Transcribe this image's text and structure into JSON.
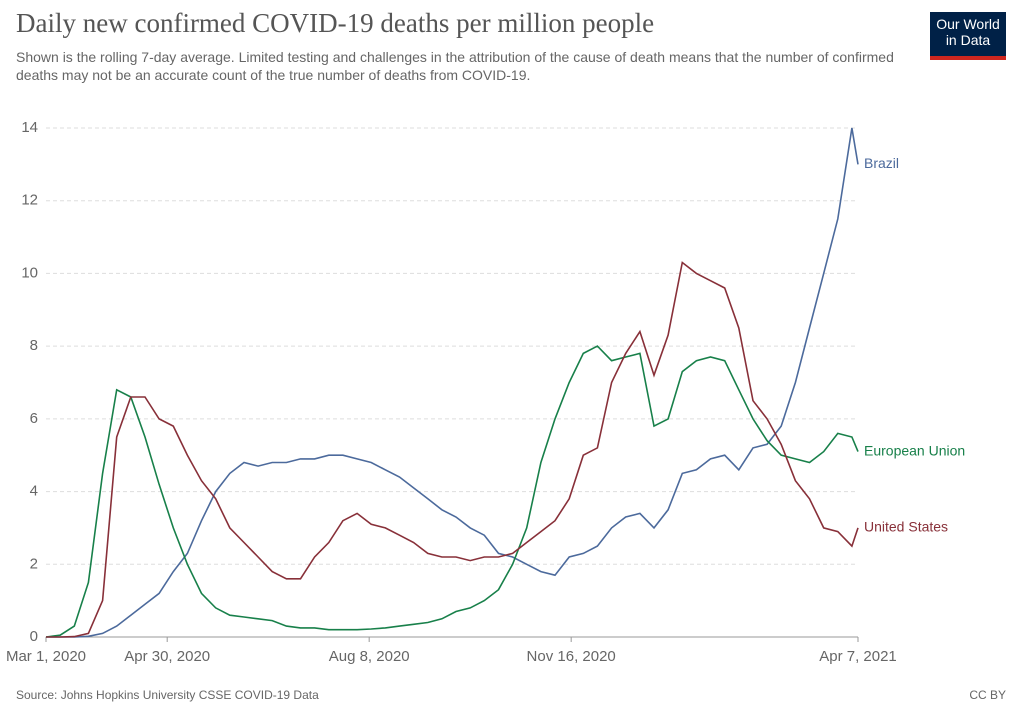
{
  "chart_data": {
    "type": "line",
    "title": "Daily new confirmed COVID-19 deaths per million people",
    "subtitle": "Shown is the rolling 7-day average. Limited testing and challenges in the attribution of the cause of death means that the number of confirmed deaths may not be an accurate count of the true number of deaths from COVID-19.",
    "logo": "Our World in Data",
    "source": "Source: Johns Hopkins University CSSE COVID-19 Data",
    "license": "CC BY",
    "x": [
      "2020-03-01",
      "2020-03-08",
      "2020-03-15",
      "2020-03-22",
      "2020-03-29",
      "2020-04-05",
      "2020-04-12",
      "2020-04-19",
      "2020-04-26",
      "2020-05-03",
      "2020-05-10",
      "2020-05-17",
      "2020-05-24",
      "2020-05-31",
      "2020-06-07",
      "2020-06-14",
      "2020-06-21",
      "2020-06-28",
      "2020-07-05",
      "2020-07-12",
      "2020-07-19",
      "2020-07-26",
      "2020-08-02",
      "2020-08-09",
      "2020-08-16",
      "2020-08-23",
      "2020-08-30",
      "2020-09-06",
      "2020-09-13",
      "2020-09-20",
      "2020-09-27",
      "2020-10-04",
      "2020-10-11",
      "2020-10-18",
      "2020-10-25",
      "2020-11-01",
      "2020-11-08",
      "2020-11-15",
      "2020-11-22",
      "2020-11-29",
      "2020-12-06",
      "2020-12-13",
      "2020-12-20",
      "2020-12-27",
      "2021-01-03",
      "2021-01-10",
      "2021-01-17",
      "2021-01-24",
      "2021-01-31",
      "2021-02-07",
      "2021-02-14",
      "2021-02-21",
      "2021-02-28",
      "2021-03-07",
      "2021-03-14",
      "2021-03-21",
      "2021-03-28",
      "2021-04-04",
      "2021-04-07"
    ],
    "series": [
      {
        "name": "Brazil",
        "color": "#4c6a9c",
        "values": [
          0,
          0,
          0,
          0.02,
          0.1,
          0.3,
          0.6,
          0.9,
          1.2,
          1.8,
          2.3,
          3.2,
          4.0,
          4.5,
          4.8,
          4.7,
          4.8,
          4.8,
          4.9,
          4.9,
          5.0,
          5.0,
          4.9,
          4.8,
          4.6,
          4.4,
          4.1,
          3.8,
          3.5,
          3.3,
          3.0,
          2.8,
          2.3,
          2.2,
          2.0,
          1.8,
          1.7,
          2.2,
          2.3,
          2.5,
          3.0,
          3.3,
          3.4,
          3.0,
          3.5,
          4.5,
          4.6,
          4.9,
          5.0,
          4.6,
          5.2,
          5.3,
          5.8,
          7.0,
          8.5,
          10.0,
          11.5,
          14.0,
          13.0
        ]
      },
      {
        "name": "European Union",
        "color": "#18804a",
        "values": [
          0,
          0.05,
          0.3,
          1.5,
          4.5,
          6.8,
          6.6,
          5.5,
          4.2,
          3.0,
          2.0,
          1.2,
          0.8,
          0.6,
          0.55,
          0.5,
          0.45,
          0.3,
          0.25,
          0.25,
          0.2,
          0.2,
          0.2,
          0.22,
          0.25,
          0.3,
          0.35,
          0.4,
          0.5,
          0.7,
          0.8,
          1.0,
          1.3,
          2.0,
          3.0,
          4.8,
          6.0,
          7.0,
          7.8,
          8.0,
          7.6,
          7.7,
          7.8,
          5.8,
          6.0,
          7.3,
          7.6,
          7.7,
          7.6,
          6.8,
          6.0,
          5.4,
          5.0,
          4.9,
          4.8,
          5.1,
          5.6,
          5.5,
          5.1
        ]
      },
      {
        "name": "United States",
        "color": "#883039",
        "values": [
          0,
          0,
          0.01,
          0.1,
          1.0,
          5.5,
          6.6,
          6.6,
          6.0,
          5.8,
          5.0,
          4.3,
          3.8,
          3.0,
          2.6,
          2.2,
          1.8,
          1.6,
          1.6,
          2.2,
          2.6,
          3.2,
          3.4,
          3.1,
          3.0,
          2.8,
          2.6,
          2.3,
          2.2,
          2.2,
          2.1,
          2.2,
          2.2,
          2.3,
          2.6,
          2.9,
          3.2,
          3.8,
          5.0,
          5.2,
          7.0,
          7.8,
          8.4,
          7.2,
          8.3,
          10.3,
          10.0,
          9.8,
          9.6,
          8.5,
          6.5,
          6.0,
          5.3,
          4.3,
          3.8,
          3.0,
          2.9,
          2.5,
          3.0
        ]
      }
    ],
    "xlim": [
      "2020-03-01",
      "2021-04-07"
    ],
    "xticks": [
      {
        "value": "2020-03-01",
        "label": "Mar 1, 2020"
      },
      {
        "value": "2020-04-30",
        "label": "Apr 30, 2020"
      },
      {
        "value": "2020-08-08",
        "label": "Aug 8, 2020"
      },
      {
        "value": "2020-11-16",
        "label": "Nov 16, 2020"
      },
      {
        "value": "2021-04-07",
        "label": "Apr 7, 2021"
      }
    ],
    "ylim": [
      0,
      14
    ],
    "yticks": [
      0,
      2,
      4,
      6,
      8,
      10,
      12,
      14
    ],
    "grid": true
  }
}
